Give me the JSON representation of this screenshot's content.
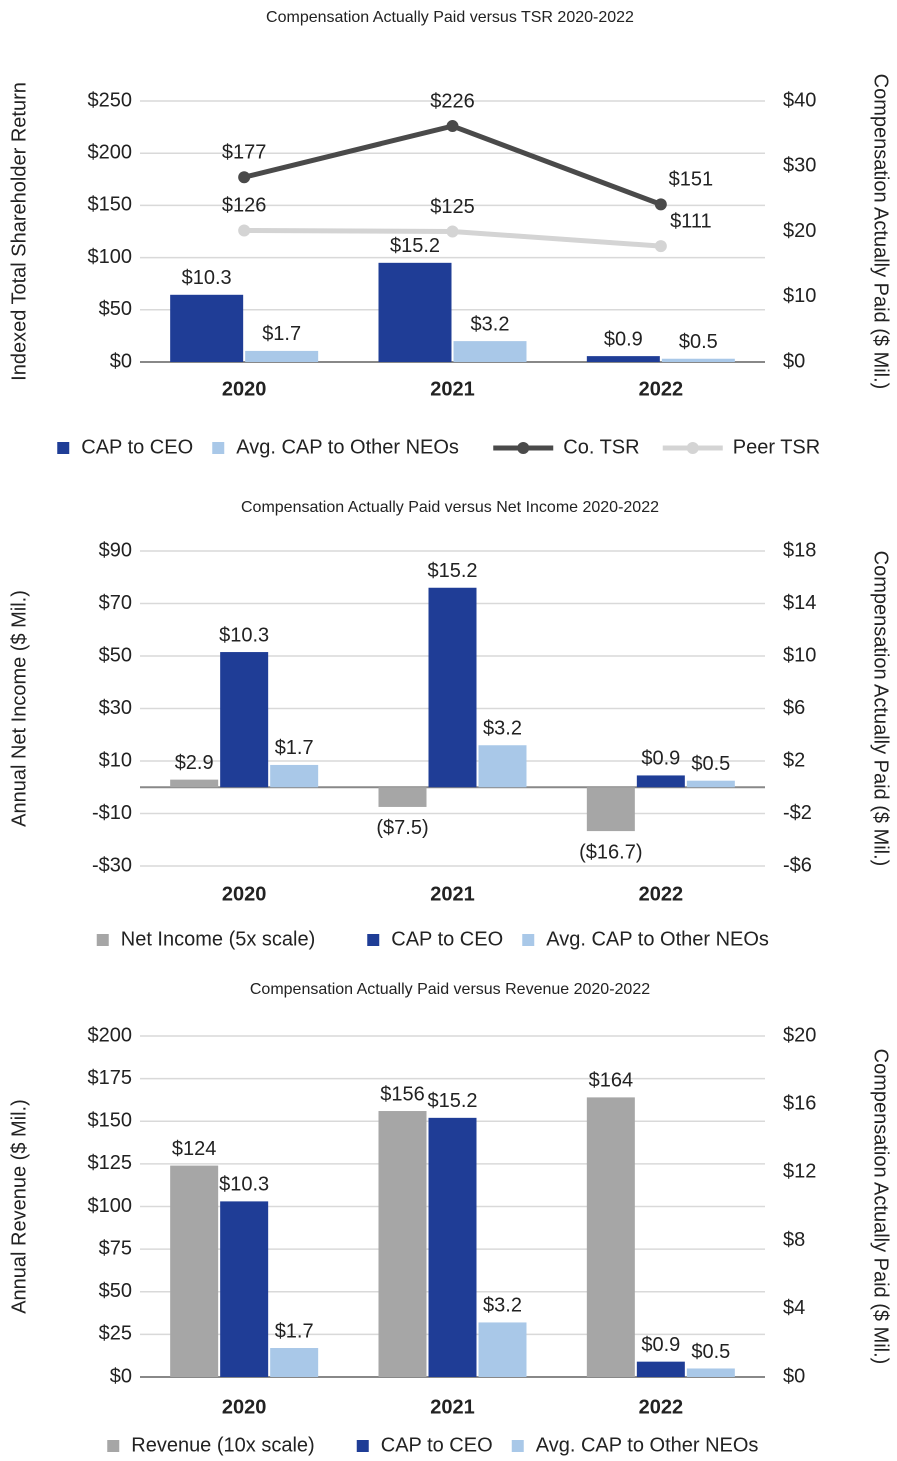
{
  "chart_data": [
    {
      "type": "bar",
      "title": "Compensation Actually Paid versus TSR 2020-2022",
      "y_label": "Indexed Total Shareholder Return",
      "y2_label": "Compensation Actually Paid ($ Mil.)",
      "categories": [
        "2020",
        "2021",
        "2022"
      ],
      "ylim": [
        0,
        250
      ],
      "yticks": [
        {
          "value": 0,
          "label": "$0"
        },
        {
          "value": 50,
          "label": "$50"
        },
        {
          "value": 100,
          "label": "$100"
        },
        {
          "value": 150,
          "label": "$150"
        },
        {
          "value": 200,
          "label": "$200"
        },
        {
          "value": 250,
          "label": "$250"
        }
      ],
      "y2lim": [
        0,
        40
      ],
      "y2ticks": [
        {
          "value": 0,
          "label": "$0"
        },
        {
          "value": 10,
          "label": "$10"
        },
        {
          "value": 20,
          "label": "$20"
        },
        {
          "value": 30,
          "label": "$30"
        },
        {
          "value": 40,
          "label": "$40"
        }
      ],
      "grid": true,
      "series": [
        {
          "name": "CAP to CEO",
          "type": "bar",
          "axis": "y2",
          "color": "#1f3d96",
          "values": [
            10.3,
            15.2,
            0.9
          ],
          "value_labels": [
            "$10.3",
            "$15.2",
            "$0.9"
          ]
        },
        {
          "name": "Avg. CAP to Other NEOs",
          "type": "bar",
          "axis": "y2",
          "color": "#a9c8e8",
          "values": [
            1.7,
            3.2,
            0.5
          ],
          "value_labels": [
            "$1.7",
            "$3.2",
            "$0.5"
          ]
        },
        {
          "name": "Co. TSR",
          "type": "line",
          "color": "#4a4a4a",
          "values": [
            177,
            226,
            151
          ],
          "value_labels": [
            "$177",
            "$226",
            "$151"
          ]
        },
        {
          "name": "Peer TSR",
          "type": "line",
          "color": "#d4d4d4",
          "values": [
            126,
            125,
            111
          ],
          "value_labels": [
            "$126",
            "$125",
            "$111"
          ]
        }
      ]
    },
    {
      "type": "bar",
      "title": "Compensation Actually Paid versus Net Income 2020-2022",
      "y_label": "Annual Net Income ($ Mil.)",
      "y2_label": "Compensation Actually Paid ($ Mil.)",
      "categories": [
        "2020",
        "2021",
        "2022"
      ],
      "ylim": [
        -30,
        90
      ],
      "yticks": [
        {
          "value": -30,
          "label": "-$30"
        },
        {
          "value": -10,
          "label": "-$10"
        },
        {
          "value": 10,
          "label": "$10"
        },
        {
          "value": 30,
          "label": "$30"
        },
        {
          "value": 50,
          "label": "$50"
        },
        {
          "value": 70,
          "label": "$70"
        },
        {
          "value": 90,
          "label": "$90"
        }
      ],
      "y2lim": [
        -6,
        18
      ],
      "y2ticks": [
        {
          "value": -6,
          "label": "-$6"
        },
        {
          "value": -2,
          "label": "-$2"
        },
        {
          "value": 2,
          "label": "$2"
        },
        {
          "value": 6,
          "label": "$6"
        },
        {
          "value": 10,
          "label": "$10"
        },
        {
          "value": 14,
          "label": "$14"
        },
        {
          "value": 18,
          "label": "$18"
        }
      ],
      "grid": true,
      "series": [
        {
          "name": "Net Income (5x scale)",
          "type": "bar",
          "color": "#a6a6a6",
          "values": [
            2.9,
            -7.5,
            -16.7
          ],
          "value_labels": [
            "$2.9",
            "($7.5)",
            "($16.7)"
          ]
        },
        {
          "name": "CAP to CEO",
          "type": "bar",
          "axis": "y2",
          "color": "#1f3d96",
          "values": [
            10.3,
            15.2,
            0.9
          ],
          "value_labels": [
            "$10.3",
            "$15.2",
            "$0.9"
          ]
        },
        {
          "name": "Avg. CAP to Other NEOs",
          "type": "bar",
          "axis": "y2",
          "color": "#a9c8e8",
          "values": [
            1.7,
            3.2,
            0.5
          ],
          "value_labels": [
            "$1.7",
            "$3.2",
            "$0.5"
          ]
        }
      ]
    },
    {
      "type": "bar",
      "title": "Compensation Actually Paid versus Revenue 2020-2022",
      "y_label": "Annual Revenue ($ Mil.)",
      "y2_label": "Compensation Actually Paid ($ Mil.)",
      "categories": [
        "2020",
        "2021",
        "2022"
      ],
      "ylim": [
        0,
        200
      ],
      "yticks": [
        {
          "value": 0,
          "label": "$0"
        },
        {
          "value": 25,
          "label": "$25"
        },
        {
          "value": 50,
          "label": "$50"
        },
        {
          "value": 75,
          "label": "$75"
        },
        {
          "value": 100,
          "label": "$100"
        },
        {
          "value": 125,
          "label": "$125"
        },
        {
          "value": 150,
          "label": "$150"
        },
        {
          "value": 175,
          "label": "$175"
        },
        {
          "value": 200,
          "label": "$200"
        }
      ],
      "y2lim": [
        0,
        20
      ],
      "y2ticks": [
        {
          "value": 0,
          "label": "$0"
        },
        {
          "value": 4,
          "label": "$4"
        },
        {
          "value": 8,
          "label": "$8"
        },
        {
          "value": 12,
          "label": "$12"
        },
        {
          "value": 16,
          "label": "$16"
        },
        {
          "value": 20,
          "label": "$20"
        }
      ],
      "grid": true,
      "series": [
        {
          "name": "Revenue (10x scale)",
          "type": "bar",
          "color": "#a6a6a6",
          "values": [
            124,
            156,
            164
          ],
          "value_labels": [
            "$124",
            "$156",
            "$164"
          ]
        },
        {
          "name": "CAP to CEO",
          "type": "bar",
          "axis": "y2",
          "color": "#1f3d96",
          "values": [
            10.3,
            15.2,
            0.9
          ],
          "value_labels": [
            "$10.3",
            "$15.2",
            "$0.9"
          ]
        },
        {
          "name": "Avg. CAP to Other NEOs",
          "type": "bar",
          "axis": "y2",
          "color": "#a9c8e8",
          "values": [
            1.7,
            3.2,
            0.5
          ],
          "value_labels": [
            "$1.7",
            "$3.2",
            "$0.5"
          ]
        }
      ]
    }
  ]
}
